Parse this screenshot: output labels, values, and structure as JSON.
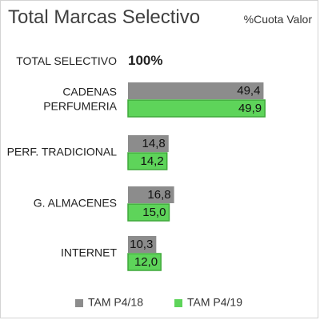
{
  "header": {
    "title": "Total Marcas Selectivo",
    "subtitle": "%Cuota Valor"
  },
  "total": {
    "label": "TOTAL SELECTIVO",
    "value": "100%"
  },
  "colors": {
    "tam_p4_18": "#8c8c8c",
    "tam_p4_19": "#5ed45a",
    "tam_p4_19_edge": "#3fa83a"
  },
  "chart_data": {
    "type": "bar",
    "orientation": "horizontal",
    "title": "Total Marcas Selectivo",
    "subtitle": "%Cuota Valor",
    "categories": [
      [
        "CADENAS",
        "PERFUMERIA"
      ],
      [
        "PERF. TRADICIONAL"
      ],
      [
        "G. ALMACENES"
      ],
      [
        "INTERNET"
      ]
    ],
    "series": [
      {
        "name": "TAM P4/18",
        "values": [
          49.4,
          14.8,
          16.8,
          10.3
        ],
        "labels": [
          "49,4",
          "14,8",
          "16,8",
          "10,3"
        ]
      },
      {
        "name": "TAM P4/19",
        "values": [
          49.9,
          14.2,
          15.0,
          12.0
        ],
        "labels": [
          "49,9",
          "14,2",
          "15,0",
          "12,0"
        ]
      }
    ],
    "grid": false,
    "legend_position": "bottom"
  }
}
